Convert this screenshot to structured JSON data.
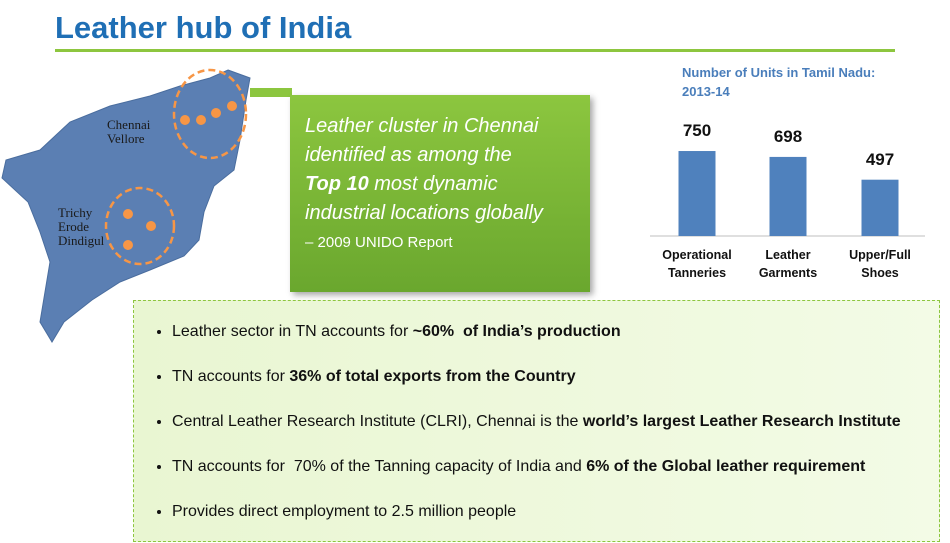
{
  "header": {
    "title": "Leather hub of India"
  },
  "map": {
    "labels": [
      [
        "Chennai",
        "Vellore"
      ],
      [
        "Trichy",
        "Erode",
        "Dindigul"
      ]
    ]
  },
  "callout": {
    "lines": [
      [
        {
          "text": "Leather cluster in Chennai"
        }
      ],
      [
        {
          "text": "identified as among the"
        }
      ],
      [
        {
          "text": "Top 10",
          "bold": true
        },
        {
          "text": " most dynamic"
        }
      ],
      [
        {
          "text": "industrial locations globally"
        }
      ]
    ],
    "source": "– 2009 UNIDO Report"
  },
  "chart_data": {
    "type": "bar",
    "title": "Number of Units in Tamil Nadu: 2013-14",
    "categories": [
      "Operational Tanneries",
      "Leather Garments",
      "Upper/Full Shoes"
    ],
    "values": [
      750,
      698,
      497
    ],
    "color": "#4f81bd"
  },
  "bullets": [
    [
      {
        "text": "Leather sector in TN accounts for "
      },
      {
        "text": "~60%  of India’s production",
        "bold": true
      }
    ],
    [
      {
        "text": "TN accounts for "
      },
      {
        "text": "36% of total exports from the Country",
        "bold": true
      }
    ],
    [
      {
        "text": "Central Leather Research Institute (CLRI), Chennai is the "
      },
      {
        "text": "world’s largest Leather Research Institute",
        "bold": true
      }
    ],
    [
      {
        "text": "TN accounts for  70% of the Tanning capacity of India and "
      },
      {
        "text": "6% of the Global leather requirement",
        "bold": true
      }
    ],
    [
      {
        "text": "Provides direct employment to 2.5 million people"
      }
    ]
  ]
}
